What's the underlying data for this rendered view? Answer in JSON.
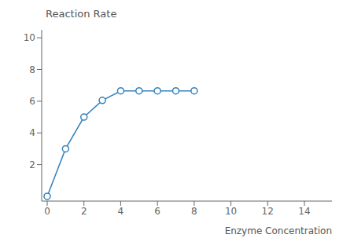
{
  "chart_data": {
    "type": "line",
    "x": [
      0,
      1,
      2,
      3,
      4,
      5,
      6,
      7,
      8
    ],
    "values": [
      0,
      3.0,
      5.0,
      6.05,
      6.65,
      6.65,
      6.65,
      6.65,
      6.65
    ],
    "xlabel": "Enzyme Concentration",
    "ylabel": "Reaction Rate",
    "xlim": [
      -0.3,
      15.5
    ],
    "ylim": [
      -0.3,
      10.5
    ],
    "xticks": [
      0,
      2,
      4,
      6,
      8,
      10,
      12,
      14
    ],
    "yticks": [
      2,
      4,
      6,
      8,
      10
    ],
    "grid": false,
    "marker": "circle"
  }
}
